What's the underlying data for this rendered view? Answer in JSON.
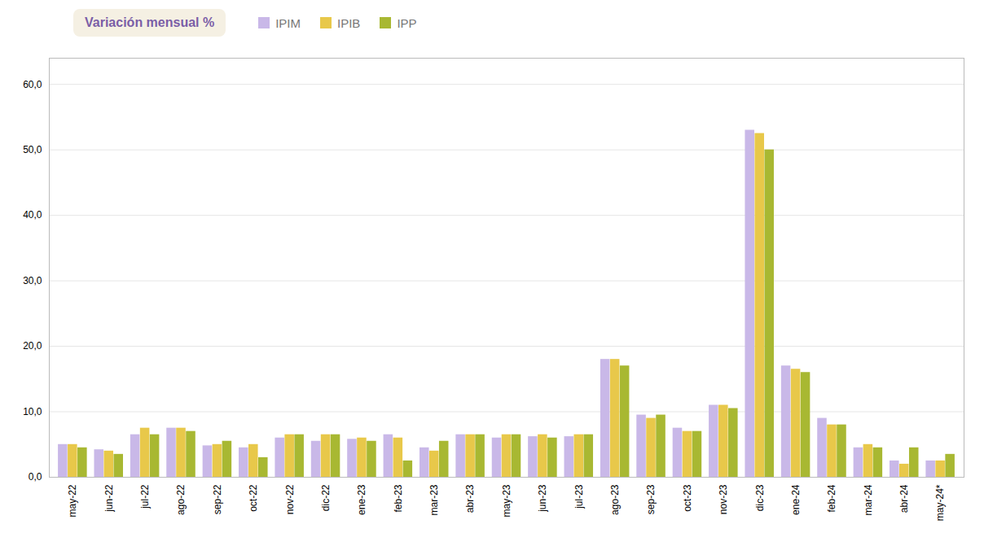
{
  "chart_data": {
    "type": "bar",
    "title": "Variación mensual %",
    "categories": [
      "may-22",
      "jun-22",
      "jul-22",
      "ago-22",
      "sep-22",
      "oct-22",
      "nov-22",
      "dic-22",
      "ene-23",
      "feb-23",
      "mar-23",
      "abr-23",
      "may-23",
      "jun-23",
      "jul-23",
      "ago-23",
      "sep-23",
      "oct-23",
      "nov-23",
      "dic-23",
      "ene-24",
      "feb-24",
      "mar-24",
      "abr-24",
      "may-24*"
    ],
    "series": [
      {
        "name": "IPIM",
        "color": "#c9b8e8",
        "values": [
          5.0,
          4.2,
          6.5,
          7.5,
          4.8,
          4.5,
          6.0,
          5.5,
          5.8,
          6.5,
          4.5,
          6.5,
          6.0,
          6.2,
          6.2,
          18.0,
          9.5,
          7.5,
          11.0,
          53.0,
          17.0,
          9.0,
          4.5,
          2.5,
          2.5
        ]
      },
      {
        "name": "IPIB",
        "color": "#e8c84a",
        "values": [
          5.0,
          4.0,
          7.5,
          7.5,
          5.0,
          5.0,
          6.5,
          6.5,
          6.0,
          6.0,
          4.0,
          6.5,
          6.5,
          6.5,
          6.5,
          18.0,
          9.0,
          7.0,
          11.0,
          52.5,
          16.5,
          8.0,
          5.0,
          2.0,
          2.5
        ]
      },
      {
        "name": "IPP",
        "color": "#a8b832",
        "values": [
          4.5,
          3.5,
          6.5,
          7.0,
          5.5,
          3.0,
          6.5,
          6.5,
          5.5,
          2.5,
          5.5,
          6.5,
          6.5,
          6.0,
          6.5,
          17.0,
          9.5,
          7.0,
          10.5,
          50.0,
          16.0,
          8.0,
          4.5,
          4.5,
          3.5
        ]
      }
    ],
    "ylim": [
      0,
      64
    ],
    "yticks": [
      {
        "value": 0.0,
        "label": "0,0"
      },
      {
        "value": 10.0,
        "label": "10,0"
      },
      {
        "value": 20.0,
        "label": "20,0"
      },
      {
        "value": 30.0,
        "label": "30,0"
      },
      {
        "value": 40.0,
        "label": "40,0"
      },
      {
        "value": 50.0,
        "label": "50,0"
      },
      {
        "value": 60.0,
        "label": "60,0"
      }
    ],
    "grid": true,
    "legend": "top"
  }
}
